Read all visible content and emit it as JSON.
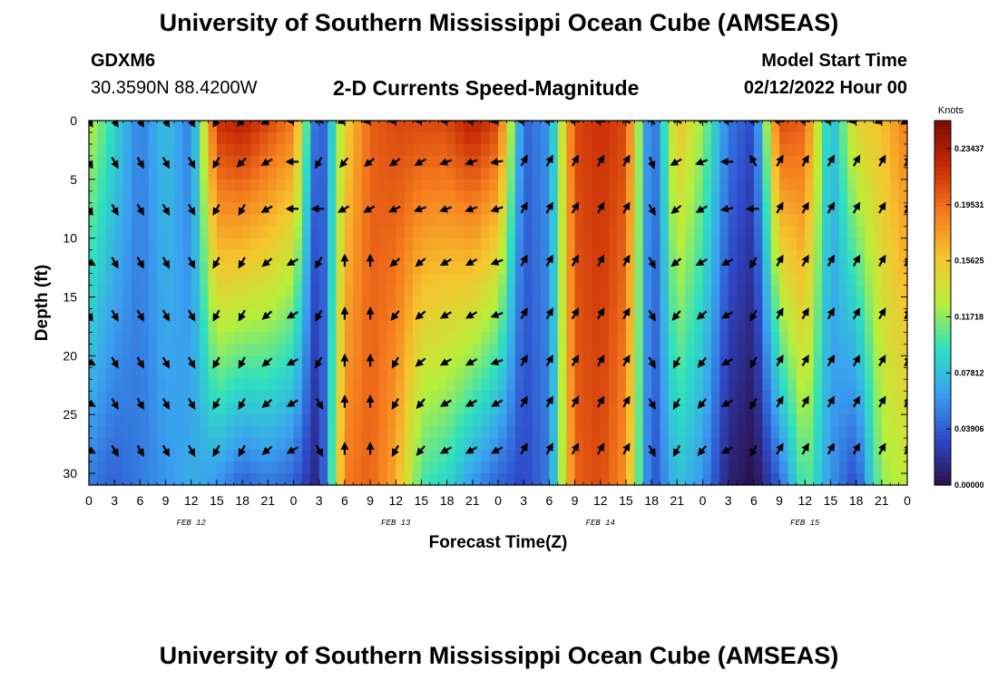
{
  "header": {
    "title": "University of Southern Mississippi Ocean Cube (AMSEAS)",
    "station": "GDXM6",
    "coordinates": "30.3590N  88.4200W",
    "subtitle": "2-D Currents Speed-Magnitude",
    "model_start_label": "Model Start Time",
    "model_start_value": "02/12/2022 Hour 00"
  },
  "footer": {
    "title": "University of Southern Mississippi Ocean Cube (AMSEAS)"
  },
  "chart_data": {
    "type": "heatmap",
    "title": "2-D Currents Speed-Magnitude",
    "xlabel": "Forecast Time(Z)",
    "ylabel": "Depth (ft)",
    "x_range": [
      0,
      96
    ],
    "y_range": [
      0,
      31
    ],
    "y_inverted": true,
    "x_tick_values": [
      0,
      3,
      6,
      9,
      12,
      15,
      18,
      21,
      24,
      27,
      30,
      33,
      36,
      39,
      42,
      45,
      48,
      51,
      54,
      57,
      60,
      63,
      66,
      69,
      72,
      75,
      78,
      81,
      84,
      87,
      90,
      93,
      96
    ],
    "x_tick_labels": [
      "0",
      "3",
      "6",
      "9",
      "12",
      "15",
      "18",
      "21",
      "0",
      "3",
      "6",
      "9",
      "12",
      "15",
      "18",
      "21",
      "0",
      "3",
      "6",
      "9",
      "12",
      "15",
      "18",
      "21",
      "0",
      "3",
      "6",
      "9",
      "12",
      "15",
      "18",
      "21",
      "0"
    ],
    "date_labels": [
      {
        "text": "FEB 12",
        "hour": 12
      },
      {
        "text": "FEB 13",
        "hour": 36
      },
      {
        "text": "FEB 14",
        "hour": 60
      },
      {
        "text": "FEB 15",
        "hour": 84
      }
    ],
    "y_ticks": [
      0,
      5,
      10,
      15,
      20,
      25,
      30
    ],
    "colorbar": {
      "unit": "Knots",
      "range": [
        0,
        0.2539
      ],
      "tick_labels": [
        "0.23437",
        "0.19531",
        "0.15625",
        "0.11718",
        "0.07812",
        "0.03906",
        "0.00000"
      ],
      "tick_values": [
        0.23437,
        0.19531,
        0.15625,
        0.11718,
        0.07812,
        0.03906,
        0.0
      ],
      "colors": [
        "#2b0f4a",
        "#2f49c9",
        "#3aa0f0",
        "#2ee0c0",
        "#b8ef3a",
        "#f6c42e",
        "#f57a1e",
        "#c72a05",
        "#7a0d03"
      ]
    },
    "arrow_depths": [
      0,
      3.5,
      7.5,
      12,
      16.5,
      20.5,
      24,
      28
    ],
    "arrow_hours": [
      0,
      3,
      6,
      9,
      12,
      15,
      18,
      21,
      24,
      27,
      30,
      33,
      36,
      39,
      42,
      45,
      48,
      51,
      54,
      57,
      60,
      63,
      66,
      69,
      72,
      75,
      78,
      81,
      84,
      87,
      90,
      93,
      96
    ],
    "speed_profile": {
      "hours": [
        0,
        3,
        6,
        9,
        12,
        15,
        18,
        21,
        24,
        27,
        30,
        33,
        36,
        39,
        42,
        45,
        48,
        51,
        54,
        57,
        60,
        63,
        66,
        69,
        72,
        75,
        78,
        81,
        84,
        87,
        90,
        93,
        96
      ],
      "surface": [
        0.13,
        0.09,
        0.05,
        0.08,
        0.05,
        0.22,
        0.23,
        0.21,
        0.19,
        0.02,
        0.15,
        0.2,
        0.21,
        0.21,
        0.21,
        0.23,
        0.21,
        0.04,
        0.06,
        0.21,
        0.22,
        0.21,
        0.03,
        0.16,
        0.12,
        0.05,
        0.03,
        0.21,
        0.2,
        0.07,
        0.15,
        0.16,
        0.19
      ],
      "bottom": [
        0.05,
        0.04,
        0.05,
        0.06,
        0.07,
        0.06,
        0.04,
        0.05,
        0.04,
        0.01,
        0.19,
        0.2,
        0.17,
        0.1,
        0.09,
        0.06,
        0.04,
        0.03,
        0.05,
        0.2,
        0.21,
        0.18,
        0.03,
        0.08,
        0.06,
        0.01,
        0.0,
        0.04,
        0.11,
        0.06,
        0.03,
        0.12,
        0.13
      ]
    },
    "arrow_angles_deg": [
      [
        300,
        300,
        300,
        300,
        300,
        240,
        225,
        210,
        180,
        150,
        200,
        190,
        185,
        180,
        180,
        180,
        190,
        180,
        170,
        170,
        170,
        150,
        130,
        150,
        160,
        170,
        160,
        170,
        170,
        180,
        190,
        200,
        210
      ],
      [
        300,
        300,
        300,
        300,
        300,
        240,
        225,
        210,
        180,
        240,
        230,
        220,
        215,
        210,
        200,
        200,
        190,
        60,
        60,
        60,
        60,
        60,
        290,
        210,
        200,
        180,
        120,
        60,
        60,
        60,
        60,
        60,
        60
      ],
      [
        300,
        300,
        300,
        300,
        300,
        240,
        240,
        210,
        180,
        180,
        210,
        210,
        205,
        200,
        200,
        200,
        200,
        60,
        60,
        60,
        60,
        60,
        300,
        220,
        210,
        190,
        180,
        60,
        60,
        60,
        60,
        60,
        60
      ],
      [
        330,
        300,
        300,
        300,
        300,
        240,
        240,
        220,
        210,
        240,
        90,
        90,
        220,
        220,
        210,
        210,
        200,
        60,
        60,
        60,
        60,
        60,
        300,
        220,
        210,
        210,
        240,
        60,
        60,
        60,
        60,
        60,
        60
      ],
      [
        300,
        300,
        300,
        300,
        300,
        240,
        240,
        220,
        210,
        240,
        90,
        90,
        230,
        220,
        210,
        210,
        200,
        60,
        60,
        60,
        60,
        60,
        300,
        230,
        220,
        210,
        240,
        60,
        60,
        60,
        60,
        60,
        60
      ],
      [
        330,
        300,
        300,
        300,
        300,
        240,
        240,
        220,
        210,
        240,
        90,
        90,
        240,
        220,
        210,
        210,
        200,
        60,
        60,
        60,
        60,
        60,
        300,
        240,
        230,
        210,
        240,
        60,
        60,
        60,
        60,
        60,
        60
      ],
      [
        330,
        300,
        300,
        300,
        300,
        240,
        240,
        220,
        210,
        300,
        90,
        90,
        240,
        230,
        210,
        210,
        210,
        60,
        60,
        60,
        60,
        60,
        300,
        240,
        230,
        210,
        240,
        60,
        60,
        60,
        60,
        60,
        60
      ],
      [
        330,
        300,
        300,
        300,
        300,
        240,
        240,
        220,
        210,
        300,
        90,
        90,
        240,
        230,
        210,
        210,
        210,
        60,
        60,
        60,
        60,
        60,
        300,
        240,
        230,
        210,
        240,
        60,
        60,
        60,
        60,
        60,
        60
      ]
    ]
  }
}
